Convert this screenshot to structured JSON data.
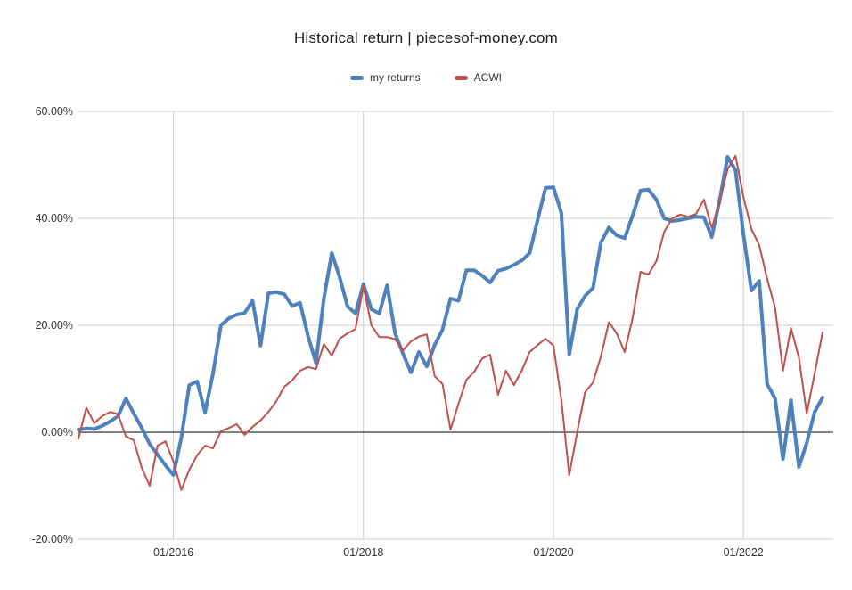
{
  "title": "Historical return | piecesof-money.com",
  "legend": {
    "items": [
      {
        "label": "my returns",
        "color": "#4f81bd"
      },
      {
        "label": "ACWI",
        "color": "#c0504d"
      }
    ]
  },
  "colors": {
    "gridline": "#cccccc",
    "zero_axis": "#000000",
    "axis_text": "#333333",
    "title_text": "#1f1f1f",
    "background": "#ffffff"
  },
  "chart_data": {
    "type": "line",
    "title": "Historical return | piecesof-money.com",
    "xlabel": "",
    "ylabel": "",
    "ylim": [
      -20,
      60
    ],
    "grid": true,
    "legend_position": "top-center",
    "y_ticks": [
      60,
      40,
      20,
      0,
      -20
    ],
    "y_tick_labels": [
      "60.00%",
      "40.00%",
      "20.00%",
      "0.00%",
      "-20.00%"
    ],
    "x_tick_labels": [
      "01/2016",
      "01/2018",
      "01/2020",
      "01/2022"
    ],
    "x_tick_indices": [
      12,
      36,
      60,
      84
    ],
    "x": [
      "01/2015",
      "02/2015",
      "03/2015",
      "04/2015",
      "05/2015",
      "06/2015",
      "07/2015",
      "08/2015",
      "09/2015",
      "10/2015",
      "11/2015",
      "12/2015",
      "01/2016",
      "02/2016",
      "03/2016",
      "04/2016",
      "05/2016",
      "06/2016",
      "07/2016",
      "08/2016",
      "09/2016",
      "10/2016",
      "11/2016",
      "12/2016",
      "01/2017",
      "02/2017",
      "03/2017",
      "04/2017",
      "05/2017",
      "06/2017",
      "07/2017",
      "08/2017",
      "09/2017",
      "10/2017",
      "11/2017",
      "12/2017",
      "01/2018",
      "02/2018",
      "03/2018",
      "04/2018",
      "05/2018",
      "06/2018",
      "07/2018",
      "08/2018",
      "09/2018",
      "10/2018",
      "11/2018",
      "12/2018",
      "01/2019",
      "02/2019",
      "03/2019",
      "04/2019",
      "05/2019",
      "06/2019",
      "07/2019",
      "08/2019",
      "09/2019",
      "10/2019",
      "11/2019",
      "12/2019",
      "01/2020",
      "02/2020",
      "03/2020",
      "04/2020",
      "05/2020",
      "06/2020",
      "07/2020",
      "08/2020",
      "09/2020",
      "10/2020",
      "11/2020",
      "12/2020",
      "01/2021",
      "02/2021",
      "03/2021",
      "04/2021",
      "05/2021",
      "06/2021",
      "07/2021",
      "08/2021",
      "09/2021",
      "10/2021",
      "11/2021",
      "12/2021",
      "01/2022",
      "02/2022",
      "03/2022",
      "04/2022",
      "05/2022",
      "06/2022",
      "07/2022",
      "08/2022",
      "09/2022",
      "10/2022",
      "11/2022"
    ],
    "series": [
      {
        "name": "my returns",
        "color": "#4f81bd",
        "line_width": 4,
        "unit": "%",
        "values": [
          0.5,
          0.7,
          0.6,
          1.2,
          2.0,
          3.0,
          6.3,
          3.5,
          0.8,
          -2.2,
          -4.2,
          -6.2,
          -8.0,
          -1.0,
          8.8,
          9.5,
          3.7,
          11.0,
          20.0,
          21.3,
          22.0,
          22.3,
          24.6,
          16.2,
          26.0,
          26.2,
          25.8,
          23.6,
          24.2,
          18.0,
          13.0,
          25.0,
          33.5,
          29.0,
          23.5,
          22.2,
          27.7,
          23.0,
          22.2,
          27.5,
          18.5,
          14.7,
          11.2,
          15.0,
          12.3,
          16.3,
          19.2,
          25.0,
          24.6,
          30.3,
          30.3,
          29.3,
          28.0,
          30.2,
          30.6,
          31.3,
          32.1,
          33.5,
          39.7,
          45.7,
          45.8,
          41.0,
          14.5,
          23.0,
          25.5,
          27.0,
          35.5,
          38.3,
          36.8,
          36.3,
          40.5,
          45.2,
          45.4,
          43.5,
          40.0,
          39.5,
          39.7,
          40.0,
          40.3,
          40.2,
          36.5,
          43.4,
          51.5,
          49.0,
          37.0,
          26.5,
          28.3,
          9.0,
          6.3,
          -5.0,
          6.0,
          -6.5,
          -2.0,
          3.8,
          6.5
        ]
      },
      {
        "name": "ACWI",
        "color": "#c0504d",
        "line_width": 2,
        "unit": "%",
        "values": [
          -1.2,
          4.6,
          1.7,
          3.0,
          3.8,
          3.4,
          -0.8,
          -1.5,
          -6.7,
          -10.0,
          -2.5,
          -1.7,
          -5.5,
          -10.8,
          -7.0,
          -4.3,
          -2.5,
          -3.0,
          0.2,
          0.8,
          1.5,
          -0.5,
          1.0,
          2.2,
          3.8,
          5.8,
          8.5,
          9.7,
          11.5,
          12.2,
          11.8,
          16.5,
          14.3,
          17.5,
          18.5,
          19.3,
          27.3,
          20.0,
          17.8,
          17.8,
          17.4,
          15.3,
          17.0,
          17.9,
          18.3,
          10.5,
          9.0,
          0.5,
          5.3,
          9.8,
          11.3,
          13.8,
          14.5,
          7.0,
          11.5,
          8.8,
          11.5,
          15.0,
          16.3,
          17.5,
          16.2,
          6.0,
          -8.0,
          0.0,
          7.5,
          9.3,
          14.2,
          20.6,
          18.5,
          15.0,
          21.3,
          30.0,
          29.5,
          32.0,
          37.5,
          40.0,
          40.7,
          40.3,
          40.8,
          43.5,
          38.2,
          43.0,
          49.2,
          51.7,
          44.0,
          38.0,
          35.0,
          28.7,
          23.3,
          11.5,
          19.5,
          14.0,
          3.5,
          11.0,
          18.7
        ]
      }
    ]
  }
}
